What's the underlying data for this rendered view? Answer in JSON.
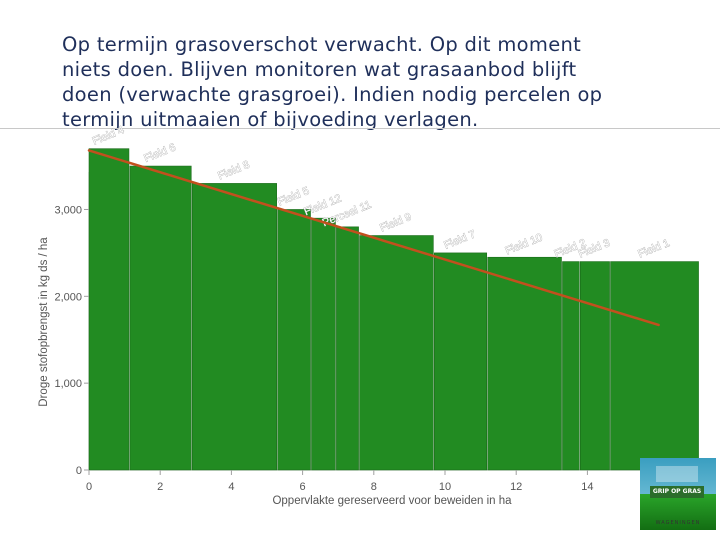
{
  "caption": {
    "lines": [
      "Op termijn grasoverschot verwacht. Op dit moment",
      "niets doen. Blijven monitoren wat grasaanbod blijft",
      "doen (verwachte grasgroei). Indien nodig percelen op",
      "termijn uitmaaien of bijvoeding verlagen."
    ]
  },
  "chart_data": {
    "type": "bar",
    "title": "",
    "xlabel": "Oppervlakte gereserveerd voor beweiden in ha",
    "ylabel": "Droge stofopbrengst in kg ds / ha",
    "xlim": [
      0,
      16
    ],
    "ylim": [
      0,
      3800
    ],
    "xticks": [
      0,
      2,
      4,
      6,
      8,
      10,
      12,
      14
    ],
    "xtick_labels": [
      "0",
      "2",
      "4",
      "6",
      "8",
      "10",
      "12",
      "14"
    ],
    "yticks": [
      0,
      1000,
      2000,
      3000
    ],
    "ytick_labels": [
      "0",
      "1,000",
      "2,000",
      "3,000"
    ],
    "bar_color": "#228B22",
    "bar_edge_color": "#1a6b1a",
    "line_color": "#c2501e",
    "bars": [
      {
        "label": "Field 4",
        "x_start": 0.0,
        "width": 1.15,
        "value": 3700
      },
      {
        "label": "Field 6",
        "x_start": 1.15,
        "width": 1.75,
        "value": 3500
      },
      {
        "label": "Field 8",
        "x_start": 2.9,
        "width": 2.4,
        "value": 3300
      },
      {
        "label": "Field 5",
        "x_start": 5.3,
        "width": 0.95,
        "value": 3000
      },
      {
        "label": "Field 12",
        "x_start": 6.25,
        "width": 0.7,
        "value": 2900
      },
      {
        "label": "Perceel 11",
        "x_start": 6.95,
        "width": 0.65,
        "value": 2800
      },
      {
        "label": "Field 9",
        "x_start": 7.6,
        "width": 2.1,
        "value": 2700
      },
      {
        "label": "Field 7",
        "x_start": 9.7,
        "width": 1.5,
        "value": 2500
      },
      {
        "label": "Field 10",
        "x_start": 11.2,
        "width": 2.1,
        "value": 2450
      },
      {
        "label": "Field 2",
        "x_start": 13.3,
        "width": 0.5,
        "value": 2400
      },
      {
        "label": "Field 3",
        "x_start": 13.8,
        "width": 0.85,
        "value": 2400
      },
      {
        "label": "Field 1",
        "x_start": 14.65,
        "width": 2.5,
        "value": 2400
      }
    ],
    "trend_line": {
      "x": [
        0.0,
        16.0
      ],
      "y": [
        3680,
        1670
      ]
    }
  },
  "logo": {
    "brand_text": "GRIP OP GRAS",
    "org_text": "WAGENINGEN"
  }
}
